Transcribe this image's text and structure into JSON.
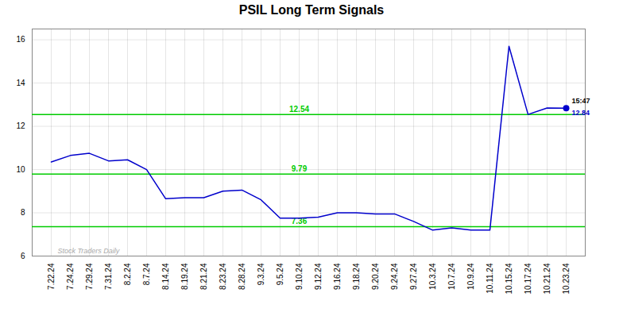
{
  "chart_data": {
    "type": "line",
    "title": "PSIL Long Term Signals",
    "categories": [
      "7.22.24",
      "7.24.24",
      "7.29.24",
      "7.31.24",
      "8.2.24",
      "8.7.24",
      "8.14.24",
      "8.19.24",
      "8.21.24",
      "8.23.24",
      "8.28.24",
      "9.3.24",
      "9.5.24",
      "9.10.24",
      "9.12.24",
      "9.16.24",
      "9.18.24",
      "9.20.24",
      "9.24.24",
      "9.27.24",
      "10.3.24",
      "10.7.24",
      "10.9.24",
      "10.11.24",
      "10.15.24",
      "10.17.24",
      "10.21.24",
      "10.23.24"
    ],
    "values": [
      10.35,
      10.65,
      10.75,
      10.4,
      10.45,
      10.0,
      8.65,
      8.7,
      8.7,
      9.0,
      9.05,
      8.6,
      7.75,
      7.75,
      7.8,
      8.0,
      8.0,
      7.95,
      7.95,
      7.6,
      7.2,
      7.3,
      7.2,
      7.2,
      15.7,
      12.55,
      12.85,
      12.84
    ],
    "color": "#0000cc",
    "ylim": [
      6.0,
      16.5
    ],
    "yticks": [
      6,
      8,
      10,
      12,
      14,
      16
    ],
    "grid": true,
    "hlines": {
      "values": [
        7.36,
        9.79,
        12.54
      ],
      "labels": [
        "7.36",
        "9.79",
        "12.54"
      ],
      "color": "#00cc00",
      "label_x": "9.10.24"
    },
    "point_annotation": {
      "x": "10.23.24",
      "y": 12.84,
      "color": "#0000cc",
      "labels": [
        {
          "text": "15:47",
          "color": "#000000"
        },
        {
          "text": "12.84",
          "color": "#0000cc"
        }
      ]
    },
    "watermark": {
      "text": "Stock Traders Daily",
      "color": "#aaaaaa"
    }
  }
}
